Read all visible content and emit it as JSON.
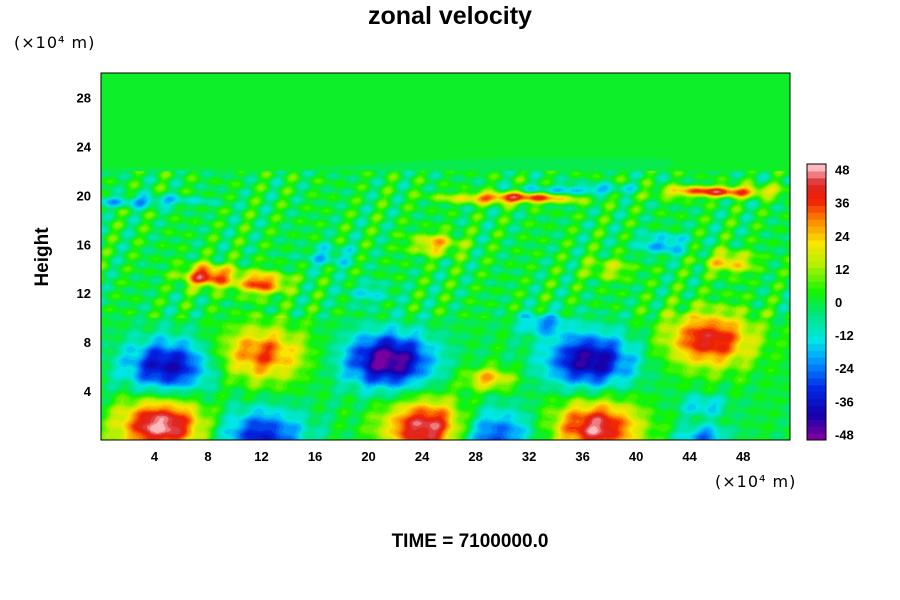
{
  "chart_data": {
    "type": "heatmap",
    "title": "zonal velocity",
    "ylabel": "Height",
    "xlabel": "",
    "y_unit": "(×10⁴ m)",
    "x_unit": "(×10⁴ m)",
    "footer": "TIME = 7100000.0",
    "xlim": [
      0,
      51.5
    ],
    "ylim": [
      0,
      30
    ],
    "x_ticks": [
      4,
      8,
      12,
      16,
      20,
      24,
      28,
      32,
      36,
      40,
      44,
      48
    ],
    "y_ticks": [
      4,
      8,
      12,
      16,
      20,
      24,
      28
    ],
    "colorbar": {
      "range": [
        -50,
        50
      ],
      "ticks": [
        48,
        36,
        24,
        12,
        0,
        -12,
        -24,
        -36,
        -48
      ],
      "levels": 40
    },
    "features": [
      {
        "x": 5,
        "y": 6,
        "value": -40
      },
      {
        "x": 4.5,
        "y": 1.2,
        "value": 50
      },
      {
        "x": 12,
        "y": 7,
        "value": 34
      },
      {
        "x": 12,
        "y": 0.3,
        "value": -34
      },
      {
        "x": 21.5,
        "y": 6.5,
        "value": -50
      },
      {
        "x": 24.5,
        "y": 1,
        "value": 50
      },
      {
        "x": 29,
        "y": 5,
        "value": 26
      },
      {
        "x": 29,
        "y": 0.4,
        "value": -32
      },
      {
        "x": 36.5,
        "y": 6.5,
        "value": -44
      },
      {
        "x": 37,
        "y": 1,
        "value": 46
      },
      {
        "x": 45.5,
        "y": 8.2,
        "value": 42
      },
      {
        "x": 45,
        "y": 0.3,
        "value": -24
      },
      {
        "x": 45,
        "y": 2.8,
        "value": -17
      },
      {
        "x": 31,
        "y": 19.8,
        "value": 40
      },
      {
        "x": 46,
        "y": 20.3,
        "value": 38
      },
      {
        "x": 8,
        "y": 13.4,
        "value": 42
      },
      {
        "x": 12,
        "y": 12.8,
        "value": 36
      },
      {
        "x": 36,
        "y": 20.4,
        "value": -20
      },
      {
        "x": 42,
        "y": 16,
        "value": -20
      },
      {
        "x": 17,
        "y": 15,
        "value": -14
      },
      {
        "x": 25,
        "y": 16,
        "value": 24
      },
      {
        "x": 3,
        "y": 19.5,
        "value": -18
      },
      {
        "x": 33,
        "y": 9.5,
        "value": -20
      },
      {
        "x": 20,
        "y": 12,
        "value": -12
      },
      {
        "x": 38,
        "y": 14,
        "value": 14
      },
      {
        "x": 47,
        "y": 14.5,
        "value": 24
      }
    ]
  }
}
